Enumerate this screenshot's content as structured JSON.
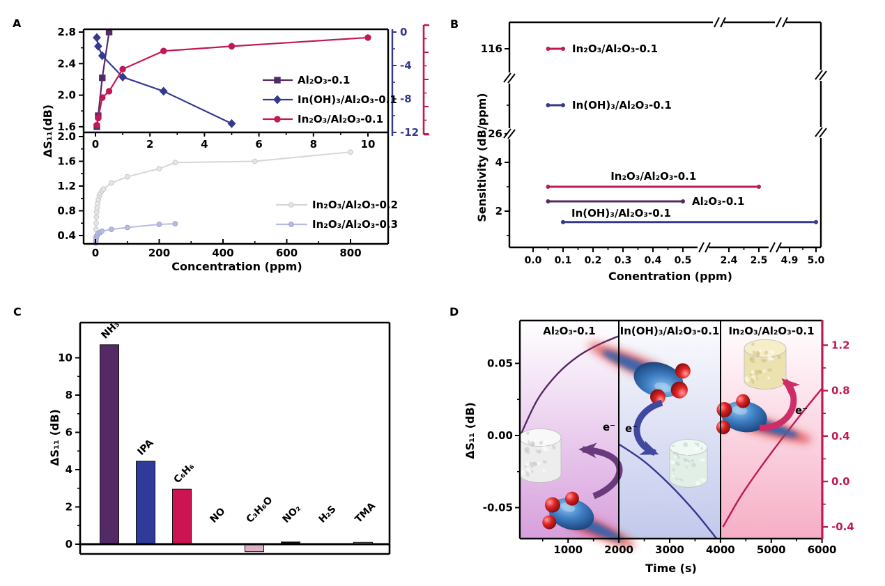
{
  "panels": {
    "a": "A",
    "b": "B",
    "c": "C",
    "d": "D"
  },
  "colors": {
    "purple": "#542a66",
    "blue": "#34398f",
    "crimson": "#c11856",
    "gray": "#d6d6d6",
    "periwinkle": "#b6bce2"
  },
  "chart_data": [
    {
      "id": "panel-a-top",
      "type": "line",
      "ylabel": "ΔS₁₁(dB)",
      "yticks": [
        "2.8",
        "2.4",
        "2.0",
        "1.6"
      ],
      "xticks": [
        "0",
        "2",
        "4",
        "6",
        "8",
        "10"
      ],
      "right_yticks": [
        "0",
        "-4",
        "-8",
        "-12"
      ],
      "grid": false,
      "legend_position": "right-middle",
      "series": [
        {
          "name": "Al₂O₃-0.1",
          "color": "purple",
          "marker": "square",
          "points": [
            [
              0.05,
              1.6
            ],
            [
              0.1,
              1.74
            ],
            [
              0.25,
              2.22
            ],
            [
              0.5,
              2.8
            ]
          ]
        },
        {
          "name": "In(OH)₃/Al₂O₃-0.1",
          "color": "blue",
          "marker": "diamond",
          "points": [
            [
              0.05,
              2.73
            ],
            [
              0.1,
              2.62
            ],
            [
              0.25,
              2.5
            ],
            [
              1.0,
              2.23
            ],
            [
              2.5,
              2.05
            ],
            [
              5.0,
              1.64
            ]
          ]
        },
        {
          "name": "In₂O₃/Al₂O₃-0.1",
          "color": "crimson",
          "marker": "circle",
          "points": [
            [
              0.05,
              1.62
            ],
            [
              0.1,
              1.71
            ],
            [
              0.25,
              1.97
            ],
            [
              0.5,
              2.05
            ],
            [
              1.0,
              2.33
            ],
            [
              2.5,
              2.56
            ],
            [
              5.0,
              2.62
            ],
            [
              10.0,
              2.73
            ]
          ]
        }
      ]
    },
    {
      "id": "panel-a-bottom",
      "type": "line",
      "xlabel": "Concentration (ppm)",
      "yticks": [
        "2.0",
        "1.6",
        "1.2",
        "0.8",
        "0.4"
      ],
      "xticks": [
        "0",
        "200",
        "400",
        "600",
        "800"
      ],
      "grid": false,
      "legend_position": "right-middle",
      "series": [
        {
          "name": "In₂O₃/Al₂O₃-0.2",
          "color": "gray",
          "marker": "circle",
          "points": [
            [
              1,
              0.38
            ],
            [
              1.5,
              0.5
            ],
            [
              2,
              0.6
            ],
            [
              3,
              0.7
            ],
            [
              4,
              0.78
            ],
            [
              5,
              0.85
            ],
            [
              7,
              0.92
            ],
            [
              9,
              0.98
            ],
            [
              12,
              1.04
            ],
            [
              15,
              1.08
            ],
            [
              20,
              1.12
            ],
            [
              25,
              1.15
            ],
            [
              50,
              1.25
            ],
            [
              100,
              1.35
            ],
            [
              200,
              1.48
            ],
            [
              250,
              1.58
            ],
            [
              500,
              1.6
            ],
            [
              800,
              1.75
            ]
          ]
        },
        {
          "name": "In₂O₃/Al₂O₃-0.3",
          "color": "periwinkle",
          "marker": "circle",
          "points": [
            [
              1,
              0.28
            ],
            [
              1.5,
              0.31
            ],
            [
              2,
              0.34
            ],
            [
              3,
              0.37
            ],
            [
              5,
              0.4
            ],
            [
              8,
              0.43
            ],
            [
              15,
              0.45
            ],
            [
              20,
              0.47
            ],
            [
              50,
              0.5
            ],
            [
              100,
              0.53
            ],
            [
              200,
              0.58
            ],
            [
              250,
              0.59
            ]
          ]
        }
      ]
    },
    {
      "id": "panel-b",
      "type": "segments",
      "ylabel": "Sensitivity (dB/ppm)",
      "xlabel": "Conentration (ppm)",
      "yticks": [
        "116",
        "26",
        "4",
        "2"
      ],
      "xticks": [
        "0.0",
        "0.1",
        "0.2",
        "0.3",
        "0.4",
        "0.5",
        "2.4",
        "2.5",
        "4.9",
        "5.0"
      ],
      "axis_breaks": true,
      "segments": [
        {
          "name": "In₂O₃/Al₂O₃-0.1",
          "color": "crimson",
          "sensitivity": 116,
          "x_from": 0.05,
          "x_to": 0.1,
          "label_pos": "right"
        },
        {
          "name": "In(OH)₃/Al₂O₃-0.1",
          "color": "blue",
          "sensitivity": 45,
          "x_from": 0.05,
          "x_to": 0.1,
          "label_pos": "right"
        },
        {
          "name": "In₂O₃/Al₂O₃-0.1",
          "color": "crimson",
          "sensitivity": 3,
          "x_from": 0.05,
          "x_to": 2.5,
          "label_pos": "above"
        },
        {
          "name": "Al₂O₃-0.1",
          "color": "purple",
          "sensitivity": 2.4,
          "x_from": 0.05,
          "x_to": 0.5,
          "label_pos": "right"
        },
        {
          "name": "In(OH)₃/Al₂O₃-0.1",
          "color": "blue",
          "sensitivity": 1.55,
          "x_from": 0.1,
          "x_to": 5.0,
          "label_pos": "above-left"
        }
      ]
    },
    {
      "id": "panel-c",
      "type": "bar",
      "ylabel": "ΔS₁₁ (dB)",
      "yticks": [
        "0",
        "2",
        "4",
        "6",
        "8",
        "10"
      ],
      "ylim": [
        -0.65,
        11.9
      ],
      "categories": [
        "NH₃",
        "IPA",
        "C₆H₆",
        "NO",
        "C₃H₆O",
        "NO₂",
        "H₂S",
        "TMA"
      ],
      "values": [
        10.7,
        4.45,
        2.95,
        0.02,
        -0.4,
        0.12,
        0.02,
        0.1
      ],
      "bar_colors": [
        "#542a66",
        "#2f3a99",
        "#cc1453",
        "#1a1a1a",
        "#dfb0c5",
        "#0f0f0f",
        "#2a2a2a",
        "#b7c4da"
      ]
    },
    {
      "id": "panel-d",
      "type": "line-sections",
      "xlabel": "Time (s)",
      "ylabel": "ΔS₁₁ (dB)",
      "xticks": [
        "1000",
        "2000",
        "3000",
        "4000",
        "5000",
        "6000"
      ],
      "left_yticks": [
        "0.05",
        "0.00",
        "-0.05"
      ],
      "right_yticks": [
        "1.2",
        "0.8",
        "0.4",
        "0.0",
        "-0.4"
      ],
      "sections": [
        {
          "title": "Al₂O₃-0.1",
          "curve_color": "purple",
          "axis": "left",
          "electron_label": "e⁻",
          "curve": [
            [
              60,
              0.0
            ],
            [
              400,
              0.025
            ],
            [
              800,
              0.043
            ],
            [
              1200,
              0.055
            ],
            [
              1600,
              0.063
            ],
            [
              2000,
              0.069
            ]
          ]
        },
        {
          "title": "In(OH)₃/Al₂O₃-0.1",
          "curve_color": "blue",
          "axis": "left",
          "electron_label": "e⁻",
          "curve": [
            [
              2000,
              -0.006
            ],
            [
              2500,
              -0.018
            ],
            [
              3000,
              -0.034
            ],
            [
              3500,
              -0.053
            ],
            [
              3980,
              -0.074
            ]
          ]
        },
        {
          "title": "In₂O₃/Al₂O₃-0.1",
          "curve_color": "crimson",
          "axis": "right",
          "electron_label": "e⁻",
          "curve": [
            [
              4050,
              -0.4
            ],
            [
              4400,
              -0.13
            ],
            [
              4800,
              0.13
            ],
            [
              5200,
              0.37
            ],
            [
              5600,
              0.6
            ],
            [
              6000,
              0.82
            ]
          ]
        }
      ]
    }
  ]
}
